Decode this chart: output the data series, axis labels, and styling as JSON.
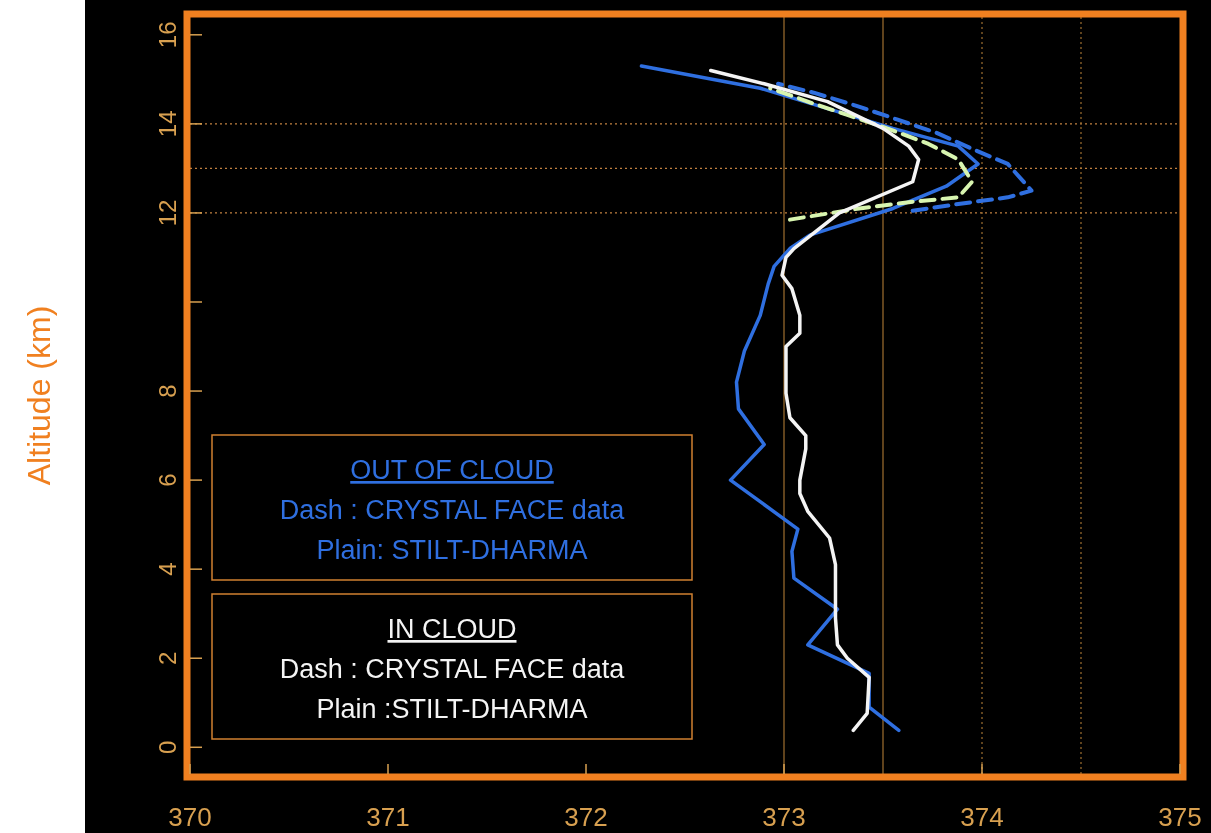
{
  "chart_data": {
    "type": "line",
    "ylabel": "Altitude (km)",
    "xlim": [
      370,
      375
    ],
    "ylim": [
      -0.6,
      16.4
    ],
    "xticks": [
      370,
      371,
      372,
      373,
      374,
      375
    ],
    "yticks": [
      0,
      2,
      4,
      6,
      8,
      {
        "value": 10,
        "label": null
      },
      12,
      14,
      16
    ],
    "grid": false,
    "ref_lines": [
      {
        "axis": "y",
        "value": 12,
        "color": "#c08040",
        "line_style": "dotted"
      },
      {
        "axis": "y",
        "value": 13,
        "color": "#c08040",
        "line_style": "dotted"
      },
      {
        "axis": "y",
        "value": 14,
        "color": "#c08040",
        "line_style": "dotted"
      },
      {
        "axis": "x",
        "value": 373,
        "color": "#a07030",
        "line_style": "solid"
      },
      {
        "axis": "x",
        "value": 373.5,
        "color": "#a07030",
        "line_style": "solid"
      },
      {
        "axis": "x",
        "value": 374,
        "color": "#a07030",
        "line_style": "dotted"
      },
      {
        "axis": "x",
        "value": 374.5,
        "color": "#a07030",
        "line_style": "dotted"
      }
    ],
    "annotations": [
      "OUT OF CLOUD",
      "Dash : CRYSTAL FACE data",
      "Plain: STILT-DHARMA",
      "IN CLOUD",
      "Dash : CRYSTAL FACE data",
      "Plain :STILT-DHARMA"
    ],
    "series": [
      {
        "color": "#2f6fe0",
        "line_style": "dashed",
        "x": [
          373.65,
          373.88,
          374.13,
          374.25,
          374.13,
          373.97,
          373.77,
          373.57,
          373.37,
          373.15,
          372.97
        ],
        "values": [
          12.05,
          12.2,
          12.35,
          12.5,
          13.1,
          13.4,
          13.8,
          14.1,
          14.4,
          14.7,
          14.9
        ]
      },
      {
        "color": "#2f6fe0",
        "line_style": "solid",
        "x": [
          373.58,
          373.43,
          373.43,
          373.12,
          373.27,
          373.05,
          373.04,
          373.07,
          372.73,
          372.9,
          372.77,
          372.76,
          372.8,
          372.88,
          372.92,
          372.95,
          373.03,
          373.13,
          373.55,
          373.82,
          373.98,
          373.88,
          373.55,
          372.88,
          372.28
        ],
        "values": [
          0.38,
          0.9,
          1.66,
          2.3,
          3.1,
          3.8,
          4.4,
          4.9,
          6.0,
          6.8,
          7.6,
          8.2,
          8.9,
          9.7,
          10.4,
          10.8,
          11.2,
          11.5,
          12.1,
          12.6,
          13.1,
          13.5,
          13.9,
          14.8,
          15.3
        ]
      },
      {
        "color": "#d8f5b0",
        "line_style": "dashed",
        "x": [
          373.03,
          373.38,
          373.65,
          373.88,
          373.95,
          373.88,
          373.73,
          373.52,
          373.32,
          373.12,
          372.93
        ],
        "values": [
          11.85,
          12.1,
          12.25,
          12.35,
          12.7,
          13.2,
          13.55,
          13.9,
          14.2,
          14.5,
          14.8
        ]
      },
      {
        "color": "#f4f4f4",
        "line_style": "solid",
        "x": [
          373.35,
          373.42,
          373.43,
          373.32,
          373.27,
          373.26,
          373.26,
          373.23,
          373.12,
          373.08,
          373.08,
          373.11,
          373.11,
          373.03,
          373.01,
          373.01,
          373.08,
          373.08,
          373.04,
          372.99,
          373.01,
          373.05,
          373.28,
          373.65,
          373.68,
          373.63,
          373.5,
          373.22,
          372.9,
          372.63
        ],
        "values": [
          0.38,
          0.76,
          1.57,
          2.0,
          2.3,
          2.9,
          4.1,
          4.7,
          5.3,
          5.7,
          6.0,
          6.7,
          7.0,
          7.4,
          7.95,
          9.0,
          9.3,
          9.7,
          10.3,
          10.6,
          11.0,
          11.2,
          12.0,
          12.7,
          13.2,
          13.5,
          13.9,
          14.5,
          14.9,
          15.2
        ]
      }
    ]
  }
}
